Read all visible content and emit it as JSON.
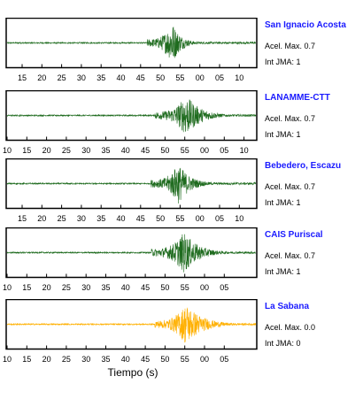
{
  "chart_data": {
    "type": "line",
    "xlabel": "Tiempo (s)",
    "panels": [
      {
        "station": "San Ignacio Acosta",
        "acel_label": "Acel. Max. 0.7",
        "jma_label": "Int JMA: 1",
        "color": "#1e6b1e",
        "x_ticks": [
          "15",
          "20",
          "25",
          "30",
          "35",
          "40",
          "45",
          "50",
          "55",
          "00",
          "05",
          "10"
        ],
        "signal": {
          "onset": 36,
          "peak_time": 42.5,
          "peak_amp": 0.95,
          "decay": 0.15
        }
      },
      {
        "station": "LANAMME-CTT",
        "acel_label": "Acel. Max. 0.7",
        "jma_label": "Int JMA: 1",
        "color": "#1e6b1e",
        "x_ticks": [
          "10",
          "15",
          "20",
          "25",
          "30",
          "35",
          "40",
          "45",
          "50",
          "55",
          "00",
          "05",
          "10"
        ],
        "signal": {
          "onset": 38,
          "peak_time": 46,
          "peak_amp": 0.95,
          "decay": 0.09
        }
      },
      {
        "station": "Bebedero, Escazu",
        "acel_label": "Acel. Max. 0.7",
        "jma_label": "Int JMA: 1",
        "color": "#1e6b1e",
        "x_ticks": [
          "15",
          "20",
          "25",
          "30",
          "35",
          "40",
          "45",
          "50",
          "55",
          "00",
          "05",
          "10"
        ],
        "signal": {
          "onset": 37,
          "peak_time": 44,
          "peak_amp": 0.95,
          "decay": 0.11
        }
      },
      {
        "station": "CAIS Puriscal",
        "acel_label": "Acel. Max. 0.7",
        "jma_label": "Int JMA: 1",
        "color": "#1e6b1e",
        "x_ticks": [
          "10",
          "15",
          "20",
          "25",
          "30",
          "35",
          "40",
          "45",
          "50",
          "55",
          "00",
          "05"
        ],
        "signal": {
          "onset": 37,
          "peak_time": 45.5,
          "peak_amp": 0.95,
          "decay": 0.09
        }
      },
      {
        "station": "La Sabana",
        "acel_label": "Acel. Max. 0.0",
        "jma_label": "Int JMA: 0",
        "color": "#ffb000",
        "x_ticks": [
          "10",
          "15",
          "20",
          "25",
          "30",
          "35",
          "40",
          "45",
          "50",
          "55",
          "00",
          "05"
        ],
        "signal": {
          "onset": 38,
          "peak_time": 46,
          "peak_amp": 0.95,
          "decay": 0.08
        }
      }
    ]
  }
}
